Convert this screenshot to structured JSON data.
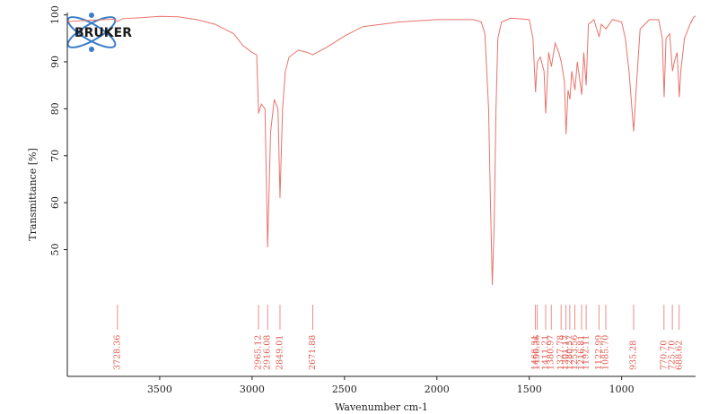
{
  "logo": "BRUKER",
  "chart_data": {
    "type": "line",
    "xlabel": "Wavenumber cm-1",
    "ylabel": "Transmittance [%]",
    "xlim": [
      4000,
      600
    ],
    "ylim": [
      23,
      100.5
    ],
    "xticks": [
      3500,
      3000,
      2500,
      2000,
      1500,
      1000
    ],
    "yticks": [
      50,
      60,
      70,
      80,
      90,
      100
    ],
    "x": [
      4000,
      3900,
      3800,
      3750,
      3728,
      3700,
      3600,
      3500,
      3400,
      3300,
      3200,
      3100,
      3050,
      3000,
      2975,
      2965,
      2950,
      2930,
      2916,
      2900,
      2880,
      2860,
      2849,
      2835,
      2820,
      2800,
      2750,
      2700,
      2671,
      2650,
      2600,
      2500,
      2400,
      2300,
      2200,
      2000,
      1800,
      1760,
      1740,
      1720,
      1710,
      1700,
      1690,
      1680,
      1670,
      1650,
      1600,
      1500,
      1480,
      1466,
      1460,
      1456,
      1440,
      1420,
      1411,
      1395,
      1380,
      1360,
      1340,
      1327,
      1310,
      1301,
      1290,
      1280,
      1270,
      1253,
      1240,
      1216,
      1205,
      1192,
      1180,
      1150,
      1122,
      1110,
      1085,
      1050,
      1000,
      980,
      960,
      935,
      920,
      900,
      850,
      800,
      780,
      770,
      760,
      740,
      725,
      715,
      700,
      688,
      680,
      660,
      630,
      610,
      600
    ],
    "series": [
      {
        "color": "#e8736c",
        "values": [
          98.6,
          98.8,
          99.0,
          99.1,
          98.6,
          99.2,
          99.4,
          99.7,
          99.6,
          99.0,
          98.0,
          96.0,
          93.5,
          92.0,
          91.5,
          79.0,
          81.0,
          80.0,
          50.5,
          75.0,
          82.0,
          80.0,
          61.0,
          80.0,
          88.0,
          91.0,
          92.5,
          92.0,
          91.5,
          92.0,
          93.0,
          95.5,
          97.5,
          98.0,
          98.5,
          99.0,
          99.0,
          98.5,
          96.0,
          80.0,
          60.0,
          42.5,
          55.0,
          80.0,
          95.0,
          98.5,
          99.3,
          99.0,
          95.0,
          83.5,
          88.0,
          90.0,
          91.0,
          88.0,
          79.0,
          92.0,
          89.0,
          94.0,
          92.0,
          90.0,
          86.0,
          74.6,
          84.0,
          82.0,
          88.0,
          84.0,
          90.0,
          83.0,
          92.0,
          85.0,
          98.0,
          99.0,
          95.3,
          98.0,
          97.0,
          99.0,
          98.5,
          95.0,
          88.0,
          75.2,
          85.0,
          97.0,
          99.0,
          99.0,
          95.0,
          82.5,
          95.0,
          96.0,
          88.0,
          90.0,
          92.0,
          82.5,
          88.0,
          95.0,
          98.0,
          99.5,
          99.8
        ]
      }
    ],
    "peaks": [
      3728.36,
      2965.12,
      2916.08,
      2849.01,
      2671.88,
      1466.31,
      1456.36,
      1411.21,
      1380.97,
      1327.78,
      1301.17,
      1280.57,
      1253.56,
      1216.81,
      1192.11,
      1122.99,
      {
        "value": 1085.7,
        "label": "1085.70"
      },
      935.28,
      {
        "value": 770.7,
        "label": "770.70"
      },
      {
        "value": 725.7,
        "label": "725.70"
      },
      688.62
    ]
  }
}
